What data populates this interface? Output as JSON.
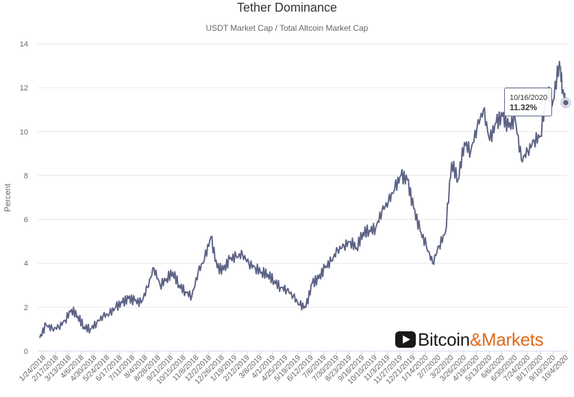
{
  "chart_data": {
    "type": "line",
    "title": "Tether Dominance",
    "subtitle": "USDT Market Cap / Total Altcoin Market Cap",
    "ylabel": "Percent",
    "xlabel": "",
    "ylim": [
      0,
      14
    ],
    "yticks": [
      "0",
      "2",
      "4",
      "6",
      "8",
      "10",
      "12",
      "14"
    ],
    "grid": true,
    "x_tick_labels": [
      "1/24/2018",
      "2/17/2018",
      "3/13/2018",
      "4/6/2018",
      "4/30/2018",
      "5/24/2018",
      "6/17/2018",
      "7/11/2018",
      "8/4/2018",
      "8/28/2018",
      "9/21/2018",
      "10/15/2018",
      "11/8/2018",
      "12/2/2018",
      "12/26/2018",
      "1/19/2019",
      "2/12/2019",
      "3/8/2019",
      "4/1/2019",
      "4/25/2019",
      "5/19/2019",
      "6/12/2019",
      "7/6/2019",
      "7/30/2019",
      "8/23/2019",
      "9/16/2019",
      "10/10/2019",
      "11/3/2019",
      "11/27/2019",
      "12/21/2019",
      "1/14/2020",
      "2/7/2020",
      "3/2/2020",
      "3/26/2020",
      "4/19/2020",
      "5/13/2020",
      "6/6/2020",
      "6/30/2020",
      "7/24/2020",
      "8/17/2020",
      "9/10/2020",
      "10/4/2020"
    ],
    "series": [
      {
        "color": "#5c6285",
        "x": [
          "2018-01-24",
          "2018-02-05",
          "2018-02-17",
          "2018-03-01",
          "2018-03-13",
          "2018-03-25",
          "2018-04-06",
          "2018-04-18",
          "2018-04-30",
          "2018-05-12",
          "2018-05-24",
          "2018-06-05",
          "2018-06-17",
          "2018-06-29",
          "2018-07-11",
          "2018-07-23",
          "2018-08-04",
          "2018-08-16",
          "2018-08-28",
          "2018-09-09",
          "2018-09-21",
          "2018-10-03",
          "2018-10-15",
          "2018-10-27",
          "2018-11-08",
          "2018-11-20",
          "2018-12-02",
          "2018-12-14",
          "2018-12-26",
          "2019-01-07",
          "2019-01-19",
          "2019-01-31",
          "2019-02-12",
          "2019-02-24",
          "2019-03-08",
          "2019-03-20",
          "2019-04-01",
          "2019-04-13",
          "2019-04-25",
          "2019-05-07",
          "2019-05-19",
          "2019-05-31",
          "2019-06-12",
          "2019-06-24",
          "2019-07-06",
          "2019-07-18",
          "2019-07-30",
          "2019-08-11",
          "2019-08-23",
          "2019-09-04",
          "2019-09-16",
          "2019-09-28",
          "2019-10-10",
          "2019-10-22",
          "2019-11-03",
          "2019-11-15",
          "2019-11-27",
          "2019-12-09",
          "2019-12-21",
          "2020-01-02",
          "2020-01-14",
          "2020-01-26",
          "2020-02-07",
          "2020-02-19",
          "2020-03-02",
          "2020-03-14",
          "2020-03-26",
          "2020-04-07",
          "2020-04-19",
          "2020-05-01",
          "2020-05-13",
          "2020-05-25",
          "2020-06-06",
          "2020-06-18",
          "2020-06-30",
          "2020-07-12",
          "2020-07-24",
          "2020-08-05",
          "2020-08-17",
          "2020-08-29",
          "2020-09-10",
          "2020-09-22",
          "2020-10-04",
          "2020-10-10",
          "2020-10-16"
        ],
        "y": [
          0.6,
          1.2,
          1.0,
          1.1,
          1.4,
          1.9,
          1.6,
          1.1,
          1.0,
          1.3,
          1.6,
          1.7,
          2.0,
          2.2,
          2.4,
          2.3,
          2.2,
          2.9,
          3.8,
          3.0,
          3.3,
          3.6,
          3.0,
          2.7,
          2.5,
          3.6,
          4.2,
          5.2,
          3.8,
          3.7,
          4.2,
          4.3,
          4.4,
          4.0,
          3.8,
          3.6,
          3.5,
          3.2,
          2.9,
          2.8,
          2.5,
          2.1,
          2.0,
          3.1,
          3.3,
          3.8,
          4.1,
          4.6,
          4.8,
          5.0,
          4.7,
          5.4,
          5.5,
          5.6,
          6.4,
          6.8,
          7.4,
          8.0,
          7.8,
          6.5,
          5.5,
          4.8,
          4.0,
          4.8,
          5.4,
          8.6,
          7.8,
          9.5,
          9.1,
          10.2,
          11.0,
          9.6,
          10.4,
          10.7,
          10.2,
          10.6,
          8.7,
          9.1,
          9.6,
          9.8,
          11.8,
          11.4,
          13.2,
          11.9,
          11.32
        ]
      }
    ],
    "tooltip": {
      "date": "10/16/2020",
      "value": "11.32%"
    },
    "branding": {
      "part1": "Bitcoin",
      "part2": "&Markets",
      "icon": "play-icon"
    }
  }
}
